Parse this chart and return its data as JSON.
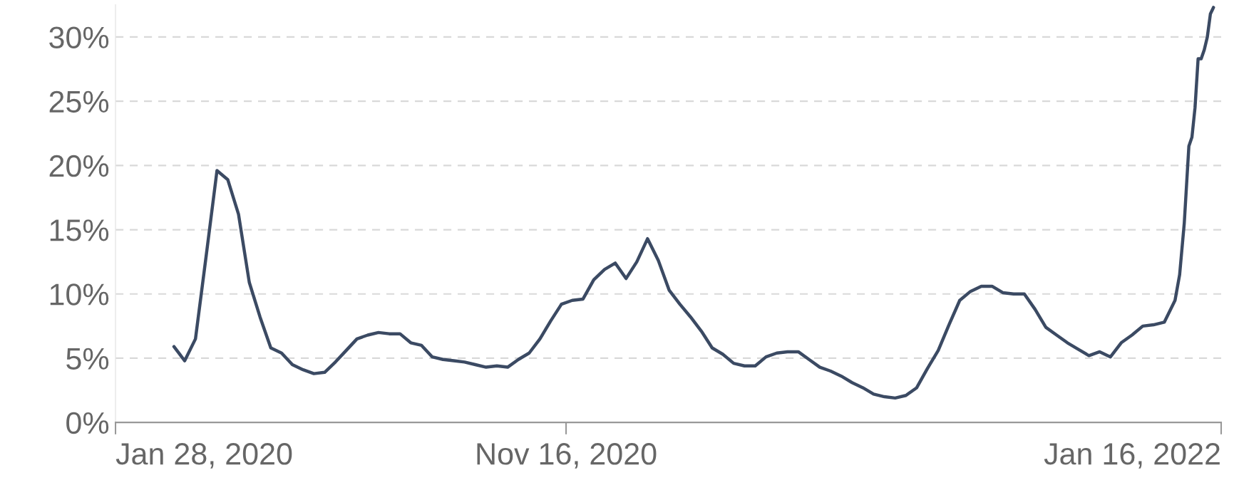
{
  "chart_data": {
    "type": "line",
    "color": "#3b4a63",
    "x": [
      "2020-03-06",
      "2020-03-13",
      "2020-03-20",
      "2020-03-27",
      "2020-04-03",
      "2020-04-10",
      "2020-04-17",
      "2020-04-24",
      "2020-05-01",
      "2020-05-08",
      "2020-05-15",
      "2020-05-22",
      "2020-05-29",
      "2020-06-05",
      "2020-06-12",
      "2020-06-19",
      "2020-06-26",
      "2020-07-03",
      "2020-07-10",
      "2020-07-17",
      "2020-07-24",
      "2020-07-31",
      "2020-08-07",
      "2020-08-14",
      "2020-08-21",
      "2020-08-28",
      "2020-09-04",
      "2020-09-11",
      "2020-09-18",
      "2020-09-25",
      "2020-10-02",
      "2020-10-09",
      "2020-10-16",
      "2020-10-23",
      "2020-10-30",
      "2020-11-06",
      "2020-11-13",
      "2020-11-20",
      "2020-11-27",
      "2020-12-04",
      "2020-12-11",
      "2020-12-18",
      "2020-12-25",
      "2021-01-01",
      "2021-01-08",
      "2021-01-15",
      "2021-01-22",
      "2021-01-29",
      "2021-02-05",
      "2021-02-12",
      "2021-02-19",
      "2021-02-26",
      "2021-03-05",
      "2021-03-12",
      "2021-03-19",
      "2021-03-26",
      "2021-04-02",
      "2021-04-09",
      "2021-04-16",
      "2021-04-23",
      "2021-04-30",
      "2021-05-07",
      "2021-05-14",
      "2021-05-21",
      "2021-05-28",
      "2021-06-04",
      "2021-06-11",
      "2021-06-18",
      "2021-06-25",
      "2021-07-02",
      "2021-07-09",
      "2021-07-16",
      "2021-07-23",
      "2021-07-30",
      "2021-08-06",
      "2021-08-13",
      "2021-08-20",
      "2021-08-27",
      "2021-09-03",
      "2021-09-10",
      "2021-09-17",
      "2021-09-24",
      "2021-10-01",
      "2021-10-08",
      "2021-10-15",
      "2021-10-22",
      "2021-10-29",
      "2021-11-05",
      "2021-11-12",
      "2021-11-19",
      "2021-11-26",
      "2021-12-03",
      "2021-12-10",
      "2021-12-17",
      "2021-12-20",
      "2021-12-23",
      "2021-12-26",
      "2021-12-28",
      "2021-12-30",
      "2022-01-01",
      "2022-01-03",
      "2022-01-05",
      "2022-01-07",
      "2022-01-09",
      "2022-01-11"
    ],
    "values": [
      5.9,
      4.8,
      6.5,
      13.0,
      19.6,
      18.9,
      16.2,
      10.9,
      8.2,
      5.8,
      5.4,
      4.5,
      4.1,
      3.8,
      3.9,
      4.7,
      5.6,
      6.5,
      6.8,
      7.0,
      6.9,
      6.9,
      6.2,
      6.0,
      5.1,
      4.9,
      4.8,
      4.7,
      4.5,
      4.3,
      4.4,
      4.3,
      4.9,
      5.4,
      6.5,
      7.9,
      9.2,
      9.5,
      9.6,
      11.1,
      11.9,
      12.4,
      11.2,
      12.5,
      14.3,
      12.6,
      10.3,
      9.2,
      8.2,
      7.1,
      5.8,
      5.3,
      4.6,
      4.4,
      4.4,
      5.1,
      5.4,
      5.5,
      5.5,
      4.9,
      4.3,
      4.0,
      3.6,
      3.1,
      2.7,
      2.2,
      2.0,
      1.9,
      2.1,
      2.7,
      4.2,
      5.6,
      7.6,
      9.5,
      10.2,
      10.6,
      10.6,
      10.1,
      10.0,
      10.0,
      8.8,
      7.4,
      6.8,
      6.2,
      5.7,
      5.2,
      5.5,
      5.1,
      6.2,
      6.8,
      7.5,
      7.6,
      7.8,
      9.5,
      11.5,
      15.5,
      21.5,
      22.2,
      24.5,
      28.3,
      28.3,
      29.0,
      30.0,
      31.8,
      32.3
    ],
    "xlim": [
      "2020-01-28",
      "2022-01-16"
    ],
    "xticks": [
      {
        "value": "2020-01-28",
        "label": "Jan 28, 2020"
      },
      {
        "value": "2020-11-16",
        "label": "Nov 16, 2020"
      },
      {
        "value": "2022-01-16",
        "label": "Jan 16, 2022"
      }
    ],
    "ylim": [
      0,
      32.5
    ],
    "yticks": [
      {
        "value": 0,
        "label": "0%"
      },
      {
        "value": 5,
        "label": "5%"
      },
      {
        "value": 10,
        "label": "10%"
      },
      {
        "value": 15,
        "label": "15%"
      },
      {
        "value": 20,
        "label": "20%"
      },
      {
        "value": 25,
        "label": "25%"
      },
      {
        "value": 30,
        "label": "30%"
      }
    ],
    "grid": "y",
    "legend": false,
    "marker": "none",
    "line_style": "solid"
  }
}
